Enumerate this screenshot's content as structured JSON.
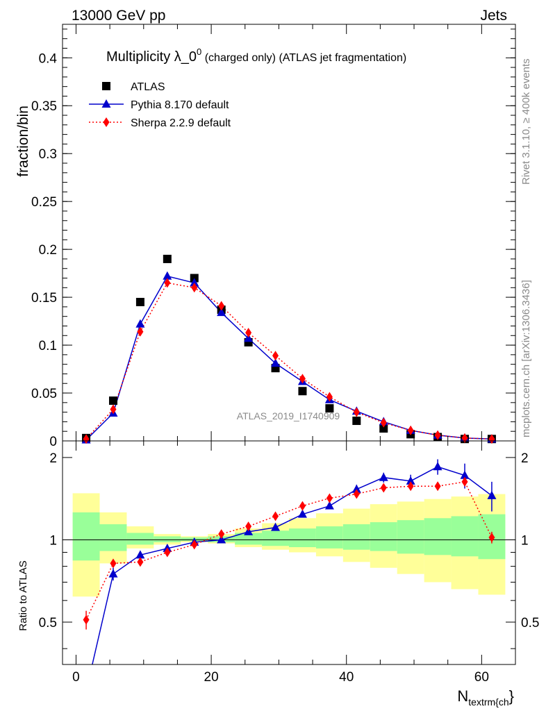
{
  "header": {
    "left": "13000 GeV pp",
    "right": "Jets"
  },
  "side_labels": {
    "rivet": "Rivet 3.1.10, ≥ 400k events",
    "mcplots": "mcplots.cern.ch [arXiv:1306.3436]"
  },
  "watermark": "ATLAS_2019_I1740909",
  "chart_data": {
    "type": "scatter",
    "title_main": "Multiplicity λ_0",
    "title_sup": "0",
    "title_rest": " (charged only) (ATLAS jet fragmentation)",
    "xlabel_main": "N",
    "xlabel_sub": "textrm{ch",
    "xlabel_end": "}",
    "ylabel": "fraction/bin",
    "ratio_ylabel": "Ratio to ATLAS",
    "xlim": [
      -2,
      65
    ],
    "ylim": [
      0,
      0.435
    ],
    "ratio_ylim": [
      0.35,
      2.3
    ],
    "x_ticks": [
      0,
      20,
      40,
      60
    ],
    "y_ticks": [
      0,
      0.05,
      0.1,
      0.15,
      0.2,
      0.25,
      0.3,
      0.35,
      0.4
    ],
    "y_tick_labels": [
      "0",
      "0.05",
      "0.1",
      "0.15",
      "0.2",
      "0.25",
      "0.3",
      "0.35",
      "0.4"
    ],
    "ratio_ticks": [
      0.5,
      1,
      2
    ],
    "ratio_tick_labels": [
      "0.5",
      "1",
      "2"
    ],
    "x": [
      1.5,
      5.5,
      9.5,
      13.5,
      17.5,
      21.5,
      25.5,
      29.5,
      33.5,
      37.5,
      41.5,
      45.5,
      49.5,
      53.5,
      57.5,
      61.5
    ],
    "bin_edges": [
      -0.5,
      3.5,
      7.5,
      11.5,
      15.5,
      19.5,
      23.5,
      27.5,
      31.5,
      35.5,
      39.5,
      43.5,
      47.5,
      51.5,
      55.5,
      59.5,
      63.5
    ],
    "legend": {
      "placement": "top-left"
    },
    "series": [
      {
        "name": "ATLAS",
        "marker": "square",
        "color": "#000000",
        "values": [
          0.003,
          0.042,
          0.145,
          0.19,
          0.17,
          0.137,
          0.103,
          0.076,
          0.052,
          0.034,
          0.021,
          0.013,
          0.007,
          0.004,
          0.002,
          0.002
        ]
      },
      {
        "name": "Pythia 8.170 default",
        "marker": "triangle",
        "color": "#0000cc",
        "line": "solid",
        "values": [
          0.001,
          0.029,
          0.122,
          0.172,
          0.165,
          0.134,
          0.107,
          0.081,
          0.062,
          0.043,
          0.031,
          0.02,
          0.011,
          0.006,
          0.003,
          0.002
        ],
        "ratio": [
          0.28,
          0.75,
          0.88,
          0.93,
          0.98,
          1.0,
          1.07,
          1.11,
          1.24,
          1.33,
          1.53,
          1.69,
          1.64,
          1.85,
          1.72,
          1.45
        ],
        "ratio_err": [
          0,
          0.04,
          0.02,
          0.02,
          0.01,
          0.01,
          0.01,
          0.02,
          0.02,
          0.03,
          0.06,
          0.07,
          0.09,
          0.12,
          0.18,
          0.18
        ]
      },
      {
        "name": "Sherpa 2.2.9 default",
        "marker": "diamond",
        "color": "#ff0000",
        "line": "dotted",
        "values": [
          0.002,
          0.033,
          0.114,
          0.165,
          0.16,
          0.141,
          0.113,
          0.089,
          0.065,
          0.046,
          0.03,
          0.019,
          0.011,
          0.006,
          0.003,
          0.002
        ],
        "ratio": [
          0.51,
          0.82,
          0.83,
          0.9,
          0.96,
          1.05,
          1.12,
          1.22,
          1.33,
          1.42,
          1.47,
          1.55,
          1.57,
          1.57,
          1.63,
          1.02
        ],
        "ratio_err": [
          0.04,
          0.02,
          0.01,
          0.01,
          0.01,
          0.01,
          0.01,
          0.01,
          0.01,
          0.02,
          0.02,
          0.03,
          0.03,
          0.04,
          0.06,
          0.05
        ]
      }
    ],
    "uncertainty_bands": {
      "inner_color": "#99ff99",
      "outer_color": "#ffff99",
      "inner": [
        [
          0.84,
          1.26
        ],
        [
          0.91,
          1.14
        ],
        [
          0.96,
          1.06
        ],
        [
          0.98,
          1.03
        ],
        [
          0.99,
          1.02
        ],
        [
          0.98,
          1.03
        ],
        [
          0.96,
          1.06
        ],
        [
          0.95,
          1.08
        ],
        [
          0.94,
          1.1
        ],
        [
          0.93,
          1.12
        ],
        [
          0.92,
          1.14
        ],
        [
          0.91,
          1.16
        ],
        [
          0.89,
          1.18
        ],
        [
          0.88,
          1.2
        ],
        [
          0.87,
          1.22
        ],
        [
          0.85,
          1.24
        ]
      ],
      "outer": [
        [
          0.62,
          1.48
        ],
        [
          0.82,
          1.26
        ],
        [
          0.93,
          1.12
        ],
        [
          0.96,
          1.05
        ],
        [
          0.98,
          1.03
        ],
        [
          0.97,
          1.05
        ],
        [
          0.94,
          1.1
        ],
        [
          0.92,
          1.15
        ],
        [
          0.9,
          1.2
        ],
        [
          0.87,
          1.25
        ],
        [
          0.83,
          1.3
        ],
        [
          0.79,
          1.35
        ],
        [
          0.75,
          1.38
        ],
        [
          0.7,
          1.41
        ],
        [
          0.66,
          1.44
        ],
        [
          0.63,
          1.47
        ]
      ]
    }
  }
}
